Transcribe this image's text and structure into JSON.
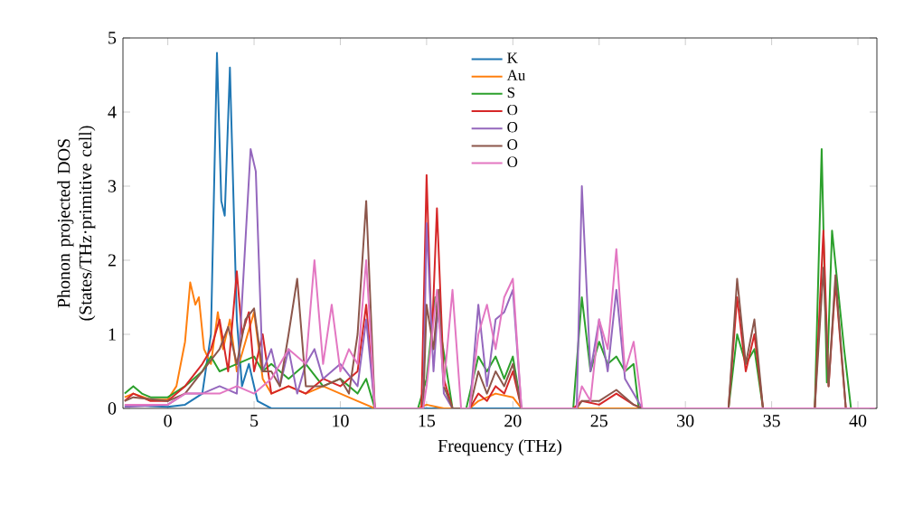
{
  "chart_data": {
    "type": "line",
    "xlabel": "Frequency (THz)",
    "ylabel": "Phonon projected DOS (States/THz·primitive cell)",
    "xlim": [
      -2.6,
      41.1
    ],
    "ylim": [
      0,
      5
    ],
    "xticks": [
      0,
      5,
      10,
      15,
      20,
      25,
      30,
      35,
      40
    ],
    "yticks": [
      0,
      1,
      2,
      3,
      4,
      5
    ],
    "grid": false,
    "legend": "top",
    "marker": "none",
    "line_style": "solid",
    "series": [
      {
        "name": "K",
        "color": "#1f77b4",
        "x": [
          -2.5,
          -2,
          -1,
          0,
          1,
          2,
          2.5,
          2.85,
          3.1,
          3.3,
          3.6,
          4.0,
          4.3,
          4.7,
          5.2,
          6,
          41
        ],
        "values": [
          0.02,
          0.05,
          0.03,
          0.02,
          0.05,
          0.2,
          1.0,
          4.8,
          2.8,
          2.6,
          4.6,
          1.2,
          0.3,
          0.6,
          0.1,
          0,
          0
        ]
      },
      {
        "name": "Au",
        "color": "#ff7f0e",
        "x": [
          -2.5,
          -2,
          -1,
          0,
          0.5,
          1,
          1.3,
          1.6,
          1.8,
          2.1,
          2.5,
          2.9,
          3.2,
          3.6,
          4,
          4.5,
          5,
          5.5,
          6,
          7,
          8,
          9,
          10,
          11,
          12,
          14.5,
          15,
          16,
          17.5,
          18,
          19,
          20,
          20.5,
          41
        ],
        "values": [
          0.15,
          0.2,
          0.12,
          0.12,
          0.3,
          0.9,
          1.7,
          1.4,
          1.5,
          0.8,
          0.6,
          1.3,
          0.8,
          1.2,
          0.5,
          0.9,
          1.3,
          0.4,
          0.2,
          0.3,
          0.2,
          0.3,
          0.2,
          0.1,
          0,
          0,
          0.05,
          0,
          0,
          0.1,
          0.2,
          0.15,
          0,
          0
        ]
      },
      {
        "name": "S",
        "color": "#2ca02c",
        "x": [
          -2.5,
          -2,
          -1.5,
          -1,
          0,
          1,
          2,
          2.5,
          3,
          4,
          5,
          5.5,
          6,
          7,
          8,
          9,
          10,
          11,
          11.5,
          12,
          14.5,
          15,
          15.5,
          16,
          16.5,
          17.3,
          18,
          18.5,
          19,
          19.5,
          20,
          20.5,
          23.5,
          24,
          24.5,
          25,
          25.5,
          26,
          26.5,
          27,
          27.3,
          32.5,
          33,
          33.5,
          34,
          34.5,
          37.5,
          37.9,
          38.2,
          38.5,
          39.2,
          39.6,
          41
        ],
        "values": [
          0.2,
          0.3,
          0.2,
          0.15,
          0.15,
          0.3,
          0.5,
          0.7,
          0.5,
          0.6,
          0.7,
          0.5,
          0.6,
          0.4,
          0.6,
          0.3,
          0.4,
          0.2,
          0.4,
          0,
          0,
          0.4,
          1.5,
          null,
          0,
          0,
          0.7,
          0.5,
          0.7,
          0.4,
          0.7,
          0,
          0,
          1.5,
          0.5,
          0.9,
          0.6,
          0.7,
          0.5,
          0.6,
          0,
          0,
          1.0,
          0.6,
          0.8,
          0,
          0,
          3.5,
          0.35,
          2.4,
          0.8,
          0,
          0
        ]
      },
      {
        "name": "O",
        "color": "#d62728",
        "x": [
          -2.5,
          -2,
          -1,
          0,
          1,
          2,
          2.5,
          3,
          3.5,
          4,
          4.3,
          4.7,
          5,
          5.5,
          6,
          7,
          8,
          9,
          10,
          11,
          11.5,
          12,
          14.7,
          15,
          15.3,
          15.6,
          16,
          16.5,
          17.5,
          18,
          18.5,
          19,
          19.5,
          20,
          20.5,
          23.5,
          24,
          25,
          26,
          27,
          27.5,
          32.5,
          33,
          33.5,
          34,
          34.5,
          37.5,
          38,
          38.3,
          38.7,
          39.3,
          41
        ],
        "values": [
          0.1,
          0.2,
          0.1,
          0.1,
          0.3,
          0.6,
          0.8,
          1.2,
          0.5,
          1.85,
          1.0,
          1.3,
          0.5,
          1.0,
          0.2,
          0.3,
          0.2,
          0.4,
          0.3,
          0.5,
          1.4,
          0,
          0,
          3.15,
          0.9,
          2.7,
          0.4,
          0,
          0,
          0.2,
          0.1,
          0.3,
          0.2,
          0.5,
          0,
          0,
          0.1,
          0.05,
          0.2,
          0.05,
          0,
          0,
          1.5,
          0.5,
          1.0,
          0,
          0,
          2.4,
          0.3,
          1.7,
          0,
          0
        ]
      },
      {
        "name": "O",
        "color": "#9467bd",
        "x": [
          -2.5,
          0,
          1,
          2,
          3,
          4,
          4.8,
          5.1,
          5.5,
          6,
          6.5,
          7,
          7.5,
          8,
          8.5,
          9,
          10,
          11,
          11.5,
          12,
          14.8,
          15,
          15.4,
          15.7,
          16,
          16.5,
          17.5,
          18,
          18.5,
          19,
          19.5,
          20,
          20.5,
          23.7,
          24,
          24.5,
          25,
          25.5,
          26,
          26.5,
          27,
          27.5,
          41
        ],
        "values": [
          0.02,
          0.05,
          0.2,
          0.2,
          0.3,
          0.2,
          3.5,
          3.2,
          0.5,
          0.8,
          0.3,
          0.8,
          0.2,
          0.6,
          0.8,
          0.4,
          0.6,
          0.3,
          1.2,
          0,
          0,
          2.5,
          0.5,
          1.5,
          0.2,
          0,
          0,
          1.4,
          0.3,
          1.2,
          1.3,
          1.6,
          0,
          0,
          3.0,
          0.5,
          1.2,
          0.5,
          1.6,
          0.4,
          0.2,
          0,
          0
        ]
      },
      {
        "name": "O",
        "color": "#8c564b",
        "x": [
          -2.5,
          -2,
          0,
          1,
          2,
          3,
          3.5,
          4,
          4.5,
          5,
          5.5,
          6,
          6.5,
          7,
          7.5,
          8,
          9,
          10,
          10.5,
          11,
          11.5,
          12,
          14.8,
          15,
          15.4,
          15.7,
          16,
          16.5,
          17.5,
          18,
          18.5,
          19,
          19.5,
          20,
          20.5,
          23.7,
          24,
          25,
          26,
          27,
          27.5,
          32.5,
          33,
          33.5,
          34,
          34.5,
          37.5,
          38,
          38.3,
          38.7,
          39.3,
          41
        ],
        "values": [
          0.1,
          0.15,
          0.1,
          0.2,
          0.5,
          0.8,
          1.1,
          0.6,
          1.2,
          1.35,
          0.5,
          0.5,
          0.3,
          1.0,
          1.75,
          0.3,
          0.3,
          0.4,
          0.2,
          1.0,
          2.8,
          0,
          0,
          1.4,
          0.8,
          1.6,
          0.3,
          0,
          0,
          0.5,
          0.2,
          0.5,
          0.3,
          0.6,
          0,
          0,
          0.1,
          0.1,
          0.25,
          0.05,
          0,
          0,
          1.75,
          0.6,
          1.2,
          0,
          0,
          1.9,
          0.3,
          1.8,
          0,
          0
        ]
      },
      {
        "name": "O",
        "color": "#e377c2",
        "x": [
          -2.5,
          0,
          1,
          2,
          3,
          4,
          5,
          6,
          7,
          8,
          8.5,
          9,
          9.5,
          10,
          10.5,
          11,
          11.5,
          12,
          14.8,
          15,
          15.6,
          16,
          16.5,
          17,
          17.5,
          18,
          18.5,
          19,
          19.5,
          20,
          20.5,
          23.7,
          24,
          24.5,
          25,
          25.5,
          26,
          26.5,
          27,
          27.5,
          41
        ],
        "values": [
          0.05,
          0.05,
          0.2,
          0.2,
          0.2,
          0.3,
          0.2,
          0.4,
          0.8,
          0.6,
          2.0,
          0.6,
          1.4,
          0.5,
          0.8,
          0.6,
          2.0,
          0,
          0,
          0.3,
          1.6,
          0.3,
          1.6,
          0,
          0,
          1.0,
          1.4,
          0.8,
          1.5,
          1.75,
          0,
          0,
          0.3,
          0.1,
          1.2,
          0.8,
          2.15,
          0.5,
          0.9,
          0,
          0
        ]
      }
    ]
  }
}
